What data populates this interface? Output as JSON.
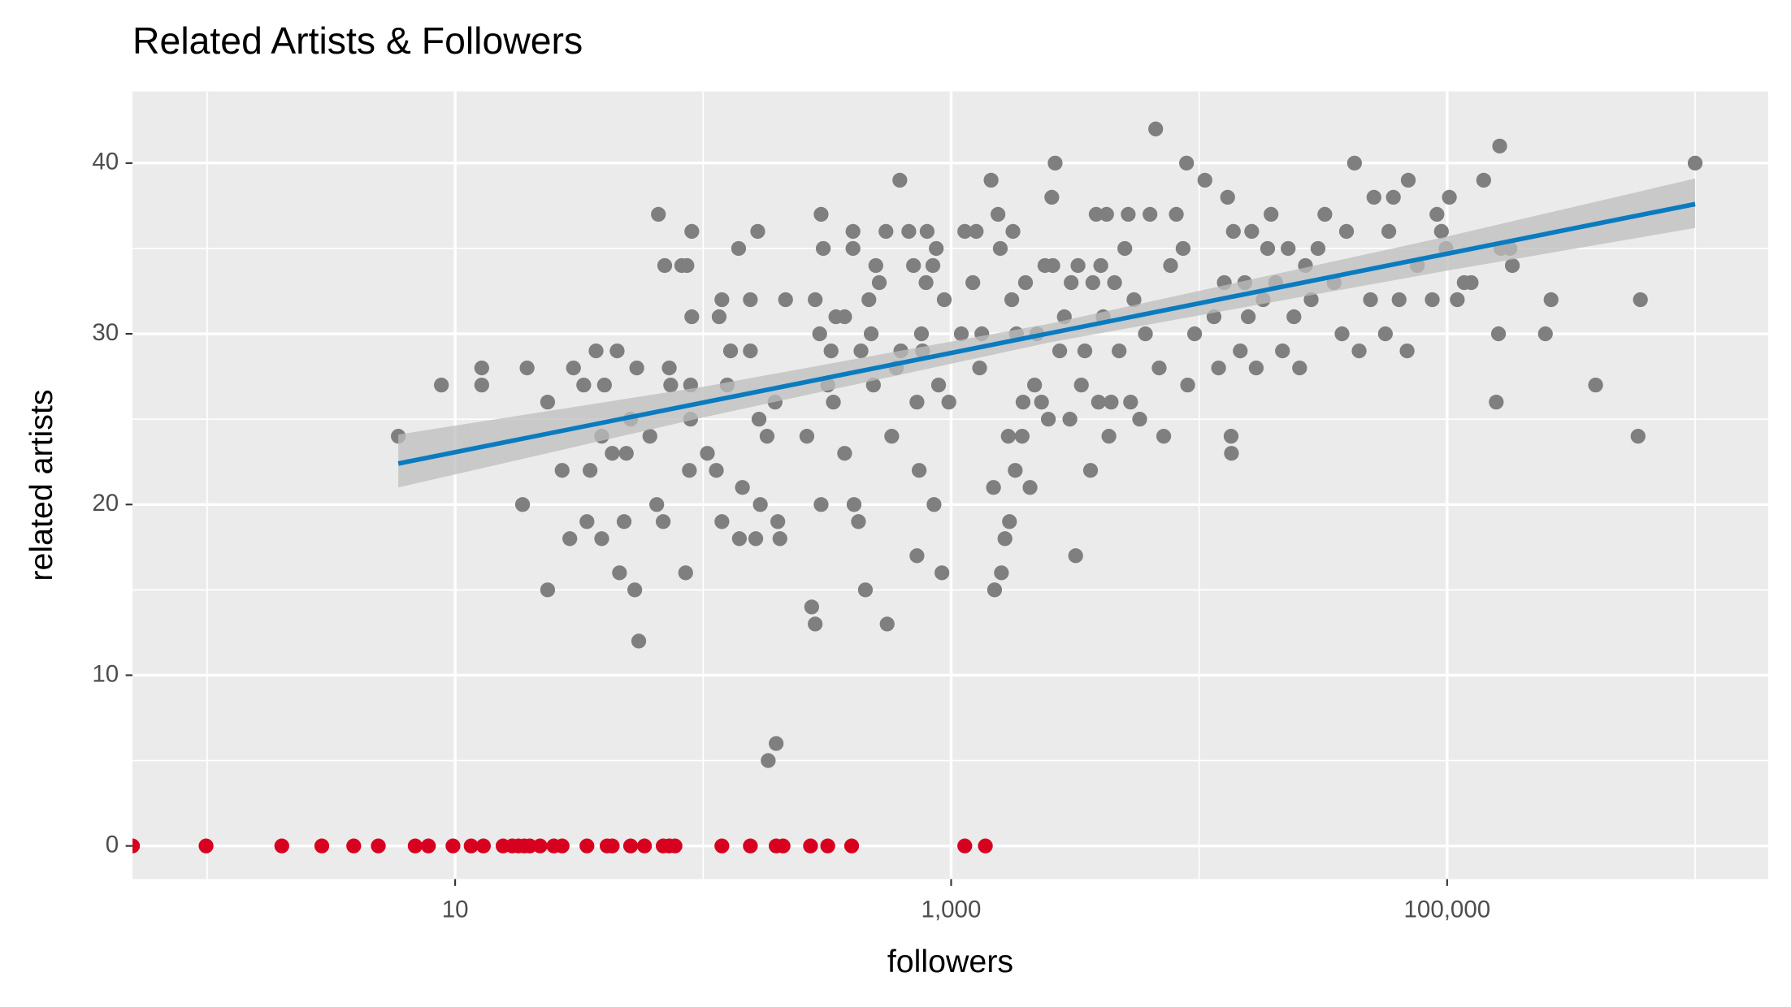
{
  "chart_data": {
    "type": "scatter",
    "title": "Related Artists & Followers",
    "xlabel": "followers",
    "ylabel": "related artists",
    "xscale": "log",
    "xlim": [
      0.5,
      1970000
    ],
    "ylim": [
      -1.94,
      44.2
    ],
    "xticks": [
      10,
      {
        "value": 1000,
        "label": "1,000"
      },
      {
        "value": 100000,
        "label": "100,000"
      }
    ],
    "xminor": [
      1,
      100,
      10000,
      1000000
    ],
    "yticks": [
      0,
      10,
      20,
      30,
      40
    ],
    "yminor": [
      5,
      15,
      25,
      35
    ],
    "grid": true,
    "panel_color": "#ebebeb",
    "series": [
      {
        "color": "#7f7f7f",
        "x": [
          5.9,
          8.8,
          12.8,
          12.8,
          18.7,
          19.5,
          23.6,
          23.6,
          27,
          29,
          30,
          33,
          34,
          35,
          37,
          39,
          39,
          40,
          43,
          45,
          46,
          48,
          49,
          51,
          54,
          53,
          55,
          61,
          65,
          66,
          69,
          70,
          73,
          74,
          82,
          86,
          85,
          88,
          89,
          89,
          90,
          90,
          104,
          113,
          116,
          119,
          119,
          125,
          129,
          139,
          140,
          144,
          155,
          155,
          163,
          166,
          170,
          168,
          181,
          183,
          197,
          195,
          200,
          204,
          215,
          262,
          274,
          283,
          283,
          295,
          299,
          299,
          305,
          318,
          328,
          335,
          343,
          372,
          372,
          402,
          402,
          406,
          423,
          433,
          451,
          466,
          476,
          486,
          497,
          513,
          546,
          552,
          576,
          601,
          621,
          627,
          675,
          705,
          728,
          743,
          728,
          759,
          767,
          792,
          800,
          844,
          853,
          871,
          890,
          918,
          938,
          979,
          1099,
          1135,
          1223,
          1262,
          1303,
          1330,
          1449,
          1482,
          1497,
          1545,
          1578,
          1595,
          1648,
          1700,
          1719,
          1756,
          1775,
          1813,
          1833,
          1933,
          1950,
          1995,
          2080,
          2170,
          2218,
          2314,
          2389,
          2466,
          2546,
          2570,
          2626,
          2740,
          2860,
          3012,
          3048,
          3178,
          3247,
          3350,
          3460,
          3648,
          3727,
          3844,
          3929,
          4013,
          4102,
          4234,
          4326,
          4418,
          4560,
          4757,
          5015,
          5177,
          5292,
          5460,
          5758,
          6073,
          6336,
          6680,
          6900,
          7197,
          7670,
          8090,
          8614,
          8897,
          8990,
          9590,
          10550,
          11480,
          11980,
          12630,
          13030,
          13450,
          13500,
          13740,
          14650,
          15280,
          15780,
          16290,
          16990,
          18110,
          18890,
          19500,
          20360,
          21680,
          22860,
          24110,
          25420,
          26830,
          28300,
          30150,
          32130,
          34990,
          37680,
          39290,
          42320,
          44170,
          49090,
          50690,
          56360,
          58190,
          60700,
          64020,
          68960,
          69700,
          75850,
          87100,
          90960,
          94840,
          98900,
          102100,
          109900,
          117200,
          125000,
          140400,
          157800,
          161100,
          162900,
          164800,
          179200,
          183200,
          249000,
          262500,
          397000,
          588700,
          601600,
          1000000
        ],
        "values": [
          24,
          27,
          28,
          27,
          20,
          28,
          26,
          15,
          22,
          18,
          28,
          27,
          19,
          22,
          29,
          24,
          18,
          27,
          23,
          29,
          16,
          19,
          23,
          25,
          28,
          15,
          12,
          24,
          20,
          37,
          19,
          34,
          28,
          27,
          34,
          34,
          16,
          22,
          25,
          27,
          31,
          36,
          23,
          22,
          31,
          32,
          19,
          27,
          29,
          35,
          18,
          21,
          32,
          29,
          18,
          36,
          20,
          25,
          24,
          5,
          6,
          26,
          19,
          18,
          32,
          24,
          14,
          13,
          32,
          30,
          20,
          37,
          35,
          27,
          29,
          26,
          31,
          31,
          23,
          36,
          35,
          20,
          19,
          29,
          15,
          32,
          30,
          27,
          34,
          33,
          36,
          13,
          24,
          28,
          39,
          29,
          36,
          34,
          26,
          22,
          17,
          30,
          29,
          33,
          36,
          34,
          20,
          35,
          27,
          16,
          32,
          26,
          30,
          36,
          33,
          36,
          28,
          30,
          39,
          21,
          15,
          37,
          35,
          16,
          18,
          24,
          19,
          32,
          36,
          22,
          30,
          24,
          26,
          33,
          21,
          27,
          30,
          26,
          34,
          25,
          38,
          34,
          40,
          29,
          31,
          25,
          33,
          17,
          34,
          27,
          29,
          22,
          33,
          37,
          26,
          34,
          31,
          37,
          24,
          26,
          33,
          29,
          35,
          37,
          26,
          32,
          25,
          30,
          37,
          42,
          28,
          24,
          34,
          37,
          35,
          40,
          27,
          30,
          39,
          31,
          28,
          33,
          38,
          24,
          23,
          36,
          29,
          33,
          31,
          36,
          28,
          32,
          35,
          37,
          33,
          29,
          35,
          31,
          28,
          34,
          32,
          35,
          37,
          33,
          30,
          36,
          40,
          29,
          32,
          38,
          30,
          36,
          38,
          32,
          29,
          39,
          34,
          32,
          37,
          36,
          35,
          38,
          32,
          33,
          33,
          39,
          26,
          30,
          41,
          35,
          35,
          34,
          30,
          32,
          27,
          24,
          32,
          40
        ]
      },
      {
        "color": "#d7001f",
        "x": [
          0.5,
          0.99,
          2,
          2.9,
          3.9,
          4.9,
          6.9,
          7.8,
          9.8,
          11.6,
          13,
          15.6,
          17,
          18,
          19,
          20,
          22,
          25,
          27,
          34,
          41,
          43,
          51,
          58,
          69,
          73,
          77,
          119,
          155,
          197,
          210,
          271,
          318,
          397,
          1135,
          1374
        ],
        "values": [
          0,
          0,
          0,
          0,
          0,
          0,
          0,
          0,
          0,
          0,
          0,
          0,
          0,
          0,
          0,
          0,
          0,
          0,
          0,
          0,
          0,
          0,
          0,
          0,
          0,
          0,
          0,
          0,
          0,
          0,
          0,
          0,
          0,
          0,
          0,
          0
        ]
      }
    ],
    "trend": {
      "color": "#0a7bbf",
      "x": [
        5.9,
        1000000
      ],
      "values": [
        22.4,
        37.6
      ]
    },
    "band": {
      "color": "#bdbdbd",
      "x": [
        5.9,
        100,
        2500,
        100000,
        1000000
      ],
      "upper": [
        24.1,
        26.9,
        30.6,
        35.7,
        39.1
      ],
      "lower": [
        21.0,
        25.1,
        29.5,
        33.7,
        36.2
      ]
    }
  }
}
